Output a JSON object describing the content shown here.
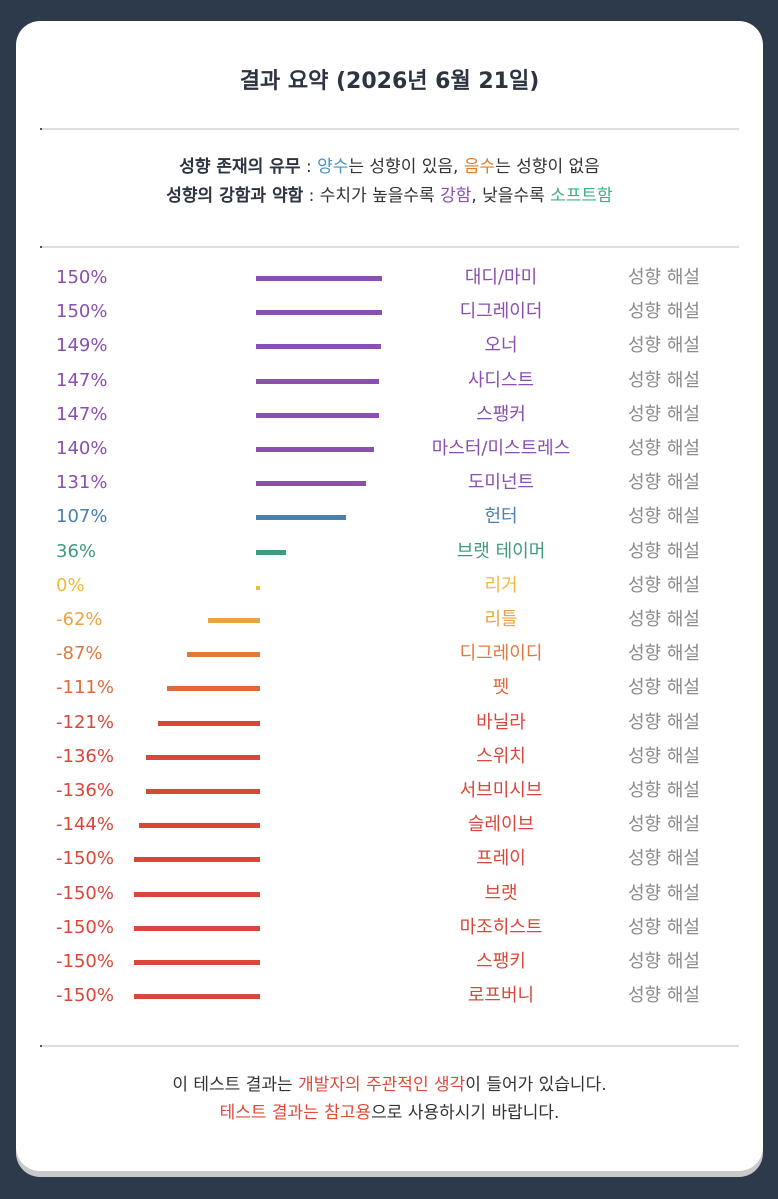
{
  "title": "결과 요약 (2026년 6월 21일)",
  "legend": {
    "line1": {
      "label": "성향 존재의 유무",
      "sep": " : ",
      "pos_word": "양수",
      "mid1": "는 성향이 있음, ",
      "neg_word": "음수",
      "mid2": "는 성향이 없음"
    },
    "line2": {
      "label": "성향의 강함과 약함",
      "sep": " : 수치가 높을수록 ",
      "strong_word": "강함",
      "mid": ", 낮을수록 ",
      "soft_word": "소프트함"
    }
  },
  "colors": {
    "purple": "#8a4fb0",
    "blue": "#4a7fb0",
    "teal": "#3e9a82",
    "yellow": "#f0b93a",
    "amber": "#e9a542",
    "orange": "#e07a3a",
    "orange_red": "#e0693a",
    "red": "#d9473a"
  },
  "chart_data": {
    "type": "bar",
    "orientation": "horizontal",
    "xlim": [
      -150,
      150
    ],
    "rows": [
      {
        "value": 150,
        "label": "150%",
        "name": "대디/마미",
        "desc": "성향 해설",
        "color": "#8a4fb0"
      },
      {
        "value": 150,
        "label": "150%",
        "name": "디그레이더",
        "desc": "성향 해설",
        "color": "#8a4fb0"
      },
      {
        "value": 149,
        "label": "149%",
        "name": "오너",
        "desc": "성향 해설",
        "color": "#8a4fb0"
      },
      {
        "value": 147,
        "label": "147%",
        "name": "사디스트",
        "desc": "성향 해설",
        "color": "#8a4fb0"
      },
      {
        "value": 147,
        "label": "147%",
        "name": "스팽커",
        "desc": "성향 해설",
        "color": "#8a4fb0"
      },
      {
        "value": 140,
        "label": "140%",
        "name": "마스터/미스트레스",
        "desc": "성향 해설",
        "color": "#8a4fb0"
      },
      {
        "value": 131,
        "label": "131%",
        "name": "도미넌트",
        "desc": "성향 해설",
        "color": "#8a4fb0"
      },
      {
        "value": 107,
        "label": "107%",
        "name": "헌터",
        "desc": "성향 해설",
        "color": "#4a7fb0"
      },
      {
        "value": 36,
        "label": "36%",
        "name": "브랫 테이머",
        "desc": "성향 해설",
        "color": "#3e9a82"
      },
      {
        "value": 0,
        "label": "0%",
        "name": "리거",
        "desc": "성향 해설",
        "color": "#f0b93a"
      },
      {
        "value": -62,
        "label": "-62%",
        "name": "리틀",
        "desc": "성향 해설",
        "color": "#e9a542"
      },
      {
        "value": -87,
        "label": "-87%",
        "name": "디그레이디",
        "desc": "성향 해설",
        "color": "#e07a3a"
      },
      {
        "value": -111,
        "label": "-111%",
        "name": "펫",
        "desc": "성향 해설",
        "color": "#e0693a"
      },
      {
        "value": -121,
        "label": "-121%",
        "name": "바닐라",
        "desc": "성향 해설",
        "color": "#d9473a"
      },
      {
        "value": -136,
        "label": "-136%",
        "name": "스위치",
        "desc": "성향 해설",
        "color": "#d9473a"
      },
      {
        "value": -136,
        "label": "-136%",
        "name": "서브미시브",
        "desc": "성향 해설",
        "color": "#d9473a"
      },
      {
        "value": -144,
        "label": "-144%",
        "name": "슬레이브",
        "desc": "성향 해설",
        "color": "#d9473a"
      },
      {
        "value": -150,
        "label": "-150%",
        "name": "프레이",
        "desc": "성향 해설",
        "color": "#d9473a"
      },
      {
        "value": -150,
        "label": "-150%",
        "name": "브랫",
        "desc": "성향 해설",
        "color": "#d9473a"
      },
      {
        "value": -150,
        "label": "-150%",
        "name": "마조히스트",
        "desc": "성향 해설",
        "color": "#d9473a"
      },
      {
        "value": -150,
        "label": "-150%",
        "name": "스팽키",
        "desc": "성향 해설",
        "color": "#d9473a"
      },
      {
        "value": -150,
        "label": "-150%",
        "name": "로프버니",
        "desc": "성향 해설",
        "color": "#d9473a"
      }
    ]
  },
  "footer": {
    "line1_pre": "이 테스트 결과는 ",
    "line1_highlight": "개발자의 주관적인 생각",
    "line1_post": "이 들어가 있습니다.",
    "line2_highlight": "테스트 결과는 참고용",
    "line2_post": "으로 사용하시기 바랍니다."
  }
}
